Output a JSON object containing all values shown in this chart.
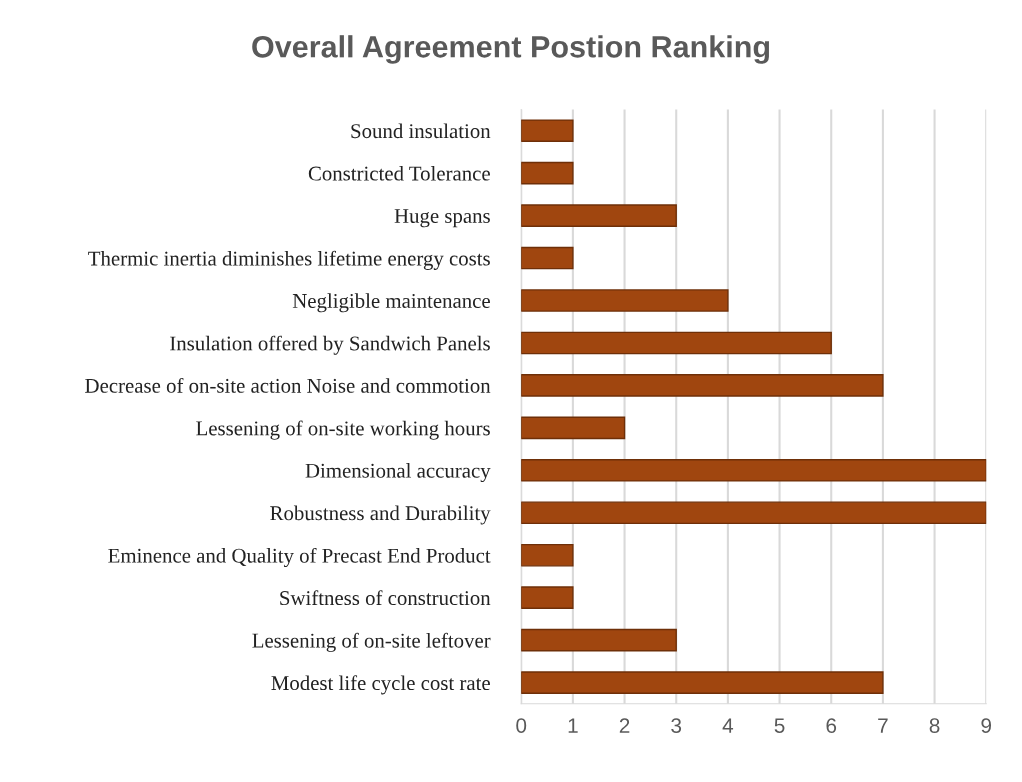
{
  "chart_data": {
    "type": "bar",
    "orientation": "horizontal",
    "title": "Overall Agreement Postion Ranking",
    "categories": [
      "Sound insulation",
      "Constricted Tolerance",
      "Huge spans",
      "Thermic inertia diminishes lifetime energy costs",
      "Negligible maintenance",
      "Insulation offered by Sandwich Panels",
      "Decrease of on-site action Noise and commotion",
      "Lessening of on-site working hours",
      "Dimensional accuracy",
      "Robustness and Durability",
      "Eminence and Quality of Precast End Product",
      "Swiftness of construction",
      "Lessening of on-site leftover",
      "Modest life cycle cost rate"
    ],
    "values": [
      1,
      1,
      3,
      1,
      4,
      6,
      7,
      2,
      9,
      9,
      1,
      1,
      3,
      7
    ],
    "color": "#a0460f",
    "xlim": [
      0,
      9
    ],
    "xticks": [
      0,
      1,
      2,
      3,
      4,
      5,
      6,
      7,
      8,
      9
    ],
    "grid": "x",
    "legend": false
  }
}
